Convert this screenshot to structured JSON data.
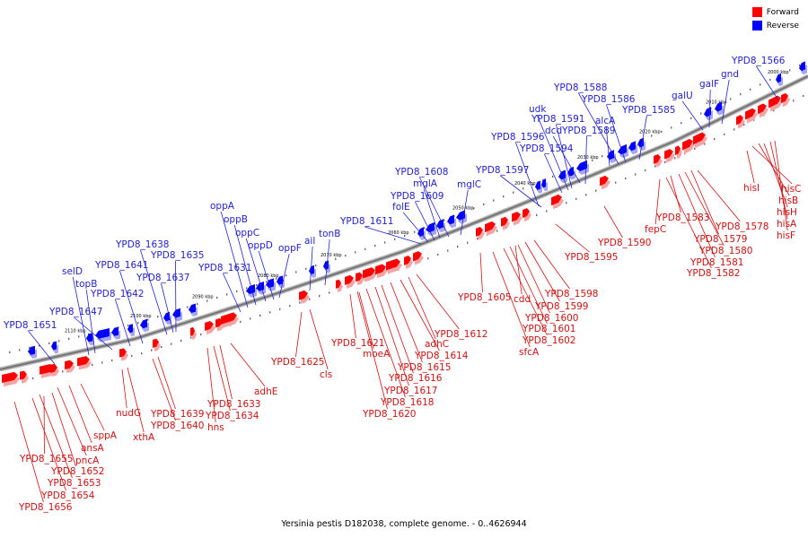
{
  "caption": "Yersinia pestis D182038, complete genome. - 0..4626944",
  "legend": [
    {
      "label": "Forward",
      "color": "#ff0000"
    },
    {
      "label": "Reverse",
      "color": "#0000ff"
    }
  ],
  "colors": {
    "forward": "#ff0000",
    "reverse": "#0000ff",
    "backbone": "#888888"
  },
  "kbp_ticks": [
    "2000 kbp",
    "2010 kbp",
    "2020 kbp",
    "2030 kbp",
    "2040 kbp",
    "2050 kbp",
    "2060 kbp",
    "2070 kbp",
    "2080 kbp",
    "2090 kbp",
    "2100 kbp",
    "2110 kbp"
  ],
  "reverse_labels": [
    "YPD8_1566",
    "gnd",
    "galF",
    "galU",
    "YPD8_1588",
    "YPD8_1586",
    "YPD8_1585",
    "alcA",
    "udk",
    "YPD8_1591",
    "dcd",
    "YPD8_1589",
    "YPD8_1596",
    "YPD8_1594",
    "YPD8_1597",
    "mglC",
    "YPD8_1608",
    "mglA",
    "folE",
    "YPD8_1609",
    "YPD8_1611",
    "tonB",
    "ail",
    "oppA",
    "oppB",
    "oppC",
    "oppD",
    "oppF",
    "YPD8_1631",
    "YPD8_1638",
    "YPD8_1635",
    "YPD8_1641",
    "YPD8_1637",
    "YPD8_1642",
    "selD",
    "topB",
    "YPD8_1647",
    "YPD8_1651"
  ],
  "forward_labels": [
    "hisC",
    "hisB",
    "hisI",
    "hisH",
    "hisA",
    "hisF",
    "YPD8_1578",
    "YPD8_1579",
    "YPD8_1580",
    "YPD8_1581",
    "YPD8_1582",
    "fepC",
    "YPD8_1583",
    "YPD8_1590",
    "YPD8_1595",
    "YPD8_1598",
    "YPD8_1599",
    "YPD8_1600",
    "YPD8_1601",
    "YPD8_1602",
    "cdd",
    "sfcA",
    "YPD8_1605",
    "YPD8_1612",
    "adhC",
    "YPD8_1614",
    "YPD8_1615",
    "YPD8_1616",
    "YPD8_1617",
    "YPD8_1618",
    "YPD8_1620",
    "YPD8_1621",
    "moeA",
    "YPD8_1625",
    "cls",
    "adhE",
    "YPD8_1633",
    "YPD8_1634",
    "hns",
    "YPD8_1639",
    "YPD8_1640",
    "nudG",
    "xthA",
    "sppA",
    "ansA",
    "pncA",
    "YPD8_1655",
    "YPD8_1652",
    "YPD8_1653",
    "YPD8_1654",
    "YPD8_1656"
  ]
}
